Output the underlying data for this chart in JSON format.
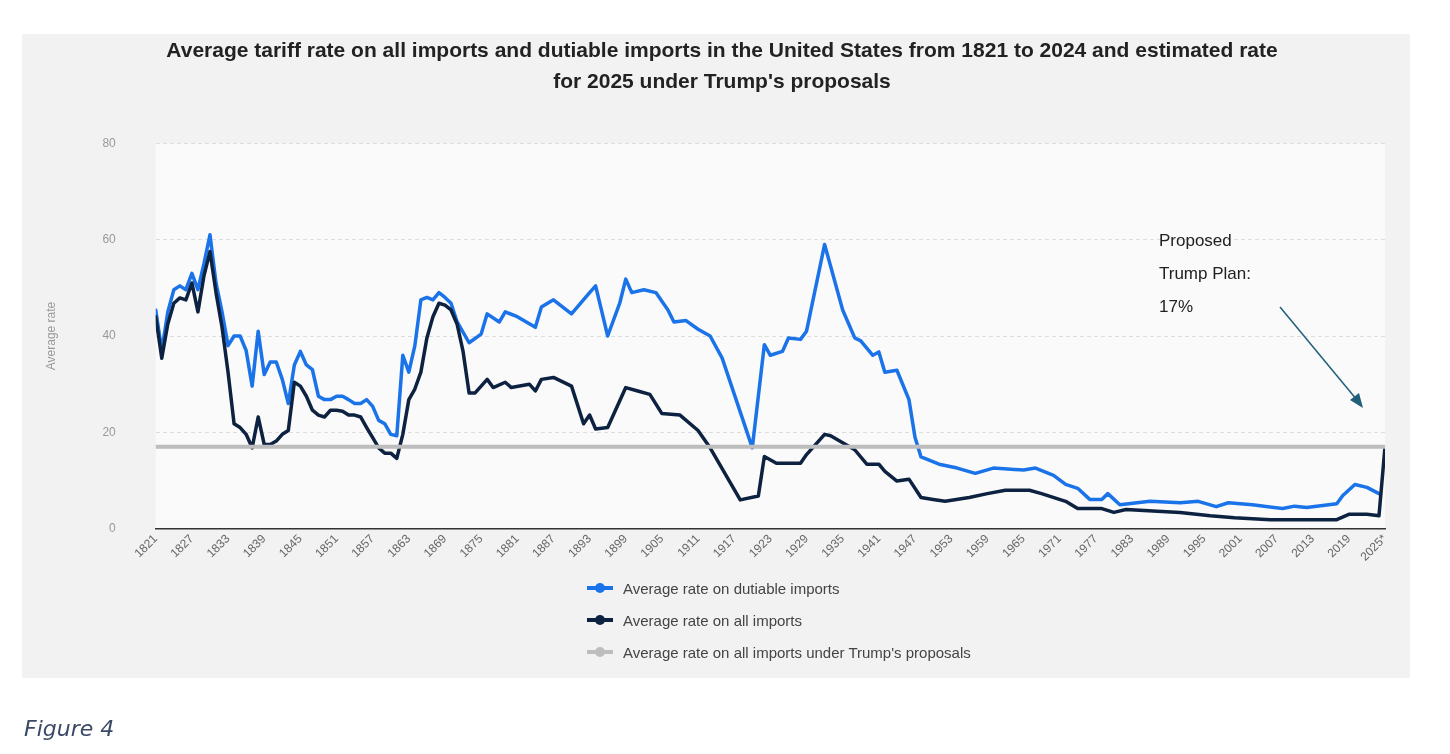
{
  "chart_data": {
    "type": "line",
    "title": "Average tariff rate on all imports and dutiable imports in the United States from 1821 to 2024 and estimated rate for 2025 under Trump's proposals",
    "ylabel": "Average rate",
    "xlim": [
      1821,
      2025
    ],
    "xticks": [
      1821,
      1827,
      1833,
      1839,
      1845,
      1851,
      1857,
      1863,
      1869,
      1875,
      1881,
      1887,
      1893,
      1899,
      1905,
      1911,
      1917,
      1923,
      1929,
      1935,
      1941,
      1947,
      1953,
      1959,
      1965,
      1971,
      1977,
      1983,
      1989,
      1995,
      2001,
      2007,
      2013,
      2019,
      {
        "value": 2025,
        "label": "2025*"
      }
    ],
    "ylim": [
      0,
      80
    ],
    "yticks": [
      0,
      20,
      40,
      60,
      80
    ],
    "grid": "y",
    "legend": "bottom",
    "line_style": "solid",
    "series": [
      {
        "name": "Average rate on dutiable imports",
        "color": "#1a73e8",
        "x": [
          1821,
          1822,
          1823,
          1824,
          1825,
          1826,
          1827,
          1828,
          1829,
          1830,
          1831,
          1832,
          1833,
          1834,
          1835,
          1836,
          1837,
          1838,
          1839,
          1840,
          1841,
          1842,
          1843,
          1844,
          1845,
          1846,
          1847,
          1848,
          1849,
          1850,
          1851,
          1852,
          1853,
          1854,
          1855,
          1856,
          1857,
          1858,
          1859,
          1860,
          1861,
          1862,
          1863,
          1864,
          1865,
          1866,
          1867,
          1868,
          1869,
          1870,
          1871,
          1873,
          1875,
          1876,
          1878,
          1879,
          1881,
          1884,
          1885,
          1887,
          1890,
          1893,
          1894,
          1896,
          1898,
          1899,
          1900,
          1902,
          1904,
          1906,
          1907,
          1909,
          1911,
          1913,
          1915,
          1920,
          1922,
          1923,
          1925,
          1926,
          1928,
          1929,
          1932,
          1935,
          1937,
          1938,
          1940,
          1941,
          1942,
          1944,
          1946,
          1947,
          1948,
          1951,
          1954,
          1957,
          1960,
          1965,
          1967,
          1970,
          1972,
          1974,
          1976,
          1978,
          1979,
          1981,
          1986,
          1991,
          1994,
          1997,
          1999,
          2003,
          2008,
          2010,
          2012,
          2017,
          2018,
          2020,
          2022,
          2024
        ],
        "values": [
          45.4,
          37,
          45,
          49.6,
          50.4,
          49.6,
          53,
          49.6,
          55,
          61,
          51,
          45,
          38,
          40,
          40,
          37,
          29.6,
          41,
          32,
          34.6,
          34.6,
          31,
          26,
          34,
          36.8,
          34,
          33,
          27.5,
          26.8,
          26.8,
          27.5,
          27.5,
          26.8,
          26,
          26,
          26.8,
          25.4,
          22.5,
          21.8,
          19.6,
          19.3,
          36,
          32.5,
          38,
          47.5,
          48,
          47.5,
          49,
          48,
          46.8,
          43,
          38.6,
          40.4,
          44.6,
          42.9,
          45,
          44,
          41.8,
          46,
          47.5,
          44.6,
          49,
          50.4,
          40,
          46.8,
          51.8,
          49,
          49.6,
          49,
          45.4,
          42.9,
          43.2,
          41.4,
          40,
          35.4,
          16.8,
          38.2,
          36,
          36.8,
          39.6,
          39.3,
          41,
          59,
          45.4,
          39.6,
          39,
          36,
          36.7,
          32.5,
          32.9,
          26.8,
          19,
          14.9,
          13.4,
          12.6,
          11.5,
          12.6,
          12.2,
          12.6,
          11.1,
          9.2,
          8.4,
          6.1,
          6.1,
          7.3,
          5,
          5.7,
          5.4,
          5.7,
          4.6,
          5.4,
          5,
          4.2,
          4.7,
          4.4,
          5.2,
          6.9,
          9.2,
          8.6,
          7.3
        ]
      },
      {
        "name": "Average rate on all imports",
        "color": "#0d2240",
        "x": [
          1821,
          1822,
          1823,
          1824,
          1825,
          1826,
          1827,
          1828,
          1829,
          1830,
          1831,
          1832,
          1833,
          1834,
          1835,
          1836,
          1837,
          1838,
          1839,
          1840,
          1841,
          1842,
          1843,
          1844,
          1845,
          1846,
          1847,
          1848,
          1849,
          1850,
          1851,
          1852,
          1853,
          1854,
          1855,
          1856,
          1857,
          1858,
          1859,
          1860,
          1861,
          1862,
          1863,
          1864,
          1865,
          1866,
          1867,
          1868,
          1869,
          1870,
          1871,
          1872,
          1873,
          1874,
          1876,
          1877,
          1879,
          1880,
          1883,
          1884,
          1885,
          1887,
          1890,
          1892,
          1893,
          1894,
          1896,
          1899,
          1901,
          1903,
          1905,
          1908,
          1911,
          1913,
          1918,
          1921,
          1922,
          1924,
          1928,
          1929,
          1932,
          1933,
          1937,
          1939,
          1941,
          1942,
          1944,
          1946,
          1948,
          1950,
          1952,
          1956,
          1959,
          1962,
          1966,
          1968,
          1972,
          1974,
          1978,
          1980,
          1982,
          1991,
          1996,
          2000,
          2006,
          2012,
          2017,
          2019,
          2022,
          2024,
          2025
        ],
        "values": [
          44,
          35.4,
          42.5,
          46.8,
          47.9,
          47.5,
          51,
          45,
          52.5,
          57.5,
          49,
          41.8,
          32.5,
          21.8,
          21,
          19.6,
          16.8,
          23.2,
          17.5,
          17.5,
          18.2,
          19.6,
          20.4,
          30.4,
          29.6,
          27.5,
          24.6,
          23.6,
          23.2,
          24.6,
          24.6,
          24.4,
          23.6,
          23.6,
          23.2,
          21,
          18.9,
          16.8,
          15.7,
          15.7,
          14.6,
          19.6,
          26.8,
          29,
          32.5,
          39.6,
          44,
          46.8,
          46.4,
          45.4,
          42.5,
          36.8,
          28.2,
          28.2,
          31,
          29.3,
          30.4,
          29.3,
          30,
          28.6,
          31,
          31.4,
          29.6,
          21.8,
          23.6,
          20.7,
          21,
          29.3,
          28.6,
          27.9,
          23.9,
          23.6,
          20.4,
          16.8,
          6,
          6.8,
          15,
          13.6,
          13.6,
          15.4,
          19.6,
          19.3,
          16.4,
          13.4,
          13.4,
          11.9,
          9.9,
          10.3,
          6.5,
          6.1,
          5.7,
          6.5,
          7.3,
          8,
          8,
          7.3,
          5.7,
          4.2,
          4.2,
          3.4,
          4,
          3.4,
          2.7,
          2.3,
          1.9,
          1.9,
          1.9,
          3,
          3,
          2.7,
          17
        ]
      },
      {
        "name": "Average rate on all imports under Trump's proposals",
        "color": "#bdbdbd",
        "x": [
          1821,
          2025
        ],
        "values": [
          17,
          17
        ]
      }
    ],
    "annotations": [
      "Proposed Trump Plan: 17%",
      "Figure 4"
    ]
  }
}
